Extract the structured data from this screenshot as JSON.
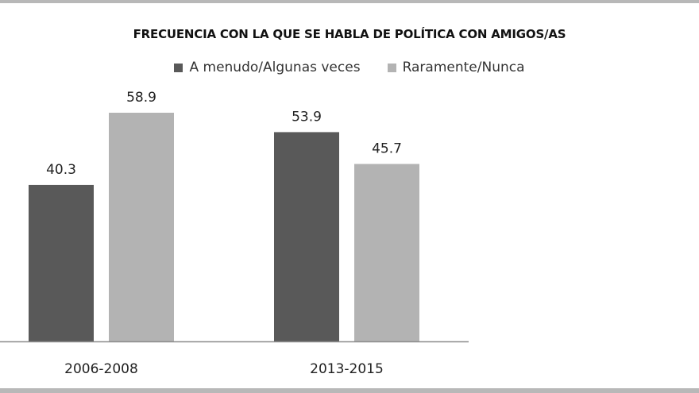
{
  "chart_data": {
    "type": "bar",
    "title": "FRECUENCIA CON LA QUE SE HABLA DE POLÍTICA CON AMIGOS/AS",
    "categories": [
      "2006-2008",
      "2013-2015"
    ],
    "series": [
      {
        "name": "A menudo/Algunas veces",
        "values": [
          40.3,
          53.9
        ],
        "color": "#595959"
      },
      {
        "name": "Raramente/Nunca",
        "values": [
          58.9,
          45.7
        ],
        "color": "#b3b3b3"
      }
    ],
    "xlabel": "",
    "ylabel": "",
    "ylim": [
      0,
      60
    ],
    "grid": false,
    "legend": "top-center",
    "data_labels": true
  }
}
